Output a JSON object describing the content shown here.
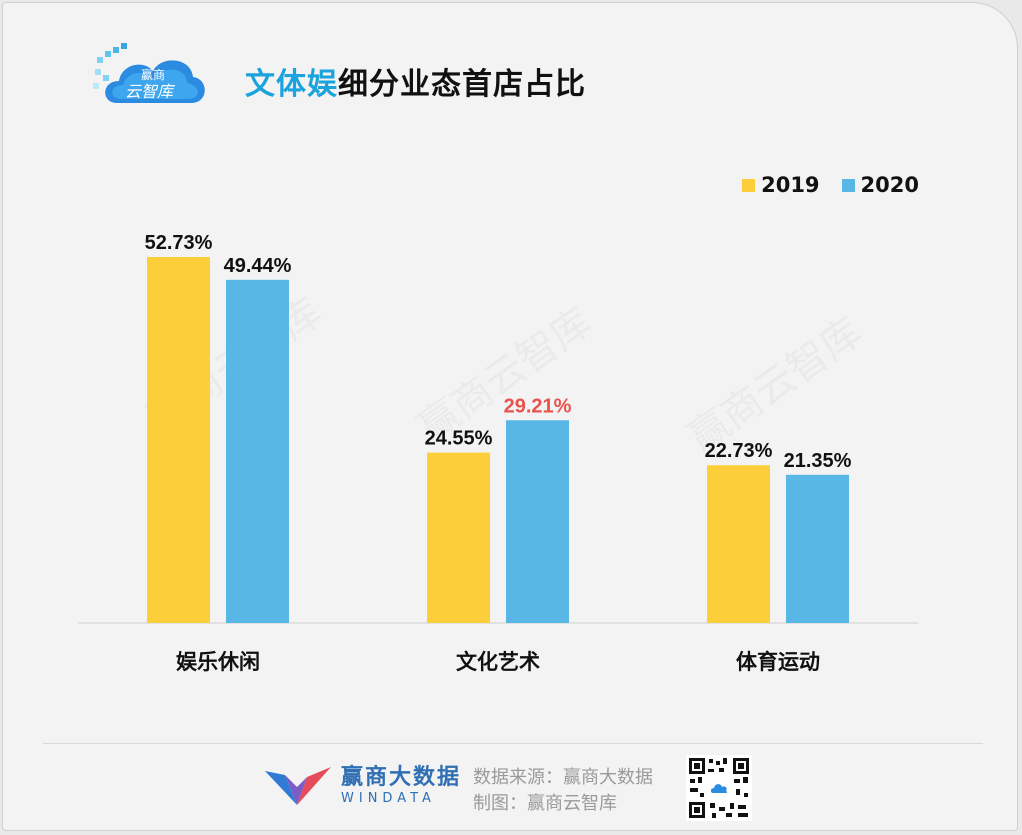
{
  "header": {
    "logo_text_top": "赢商",
    "logo_text_bottom": "云智库",
    "title_highlight": "文体娱",
    "title_rest": "细分业态首店占比"
  },
  "watermark_text": "赢商云智库",
  "colors": {
    "series_2019": "#fccf3a",
    "series_2020": "#58b7e4",
    "label": "#111111",
    "highlight_label": "#e8534d",
    "axis": "#cfcfcf"
  },
  "chart_data": {
    "type": "bar",
    "title": "文体娱细分业态首店占比",
    "categories": [
      "娱乐休闲",
      "文化艺术",
      "体育运动"
    ],
    "series": [
      {
        "name": "2019",
        "values": [
          52.73,
          24.55,
          22.73
        ],
        "labels": [
          "52.73%",
          "24.55%",
          "22.73%"
        ]
      },
      {
        "name": "2020",
        "values": [
          49.44,
          29.21,
          21.35
        ],
        "labels": [
          "49.44%",
          "29.21%",
          "21.35%"
        ]
      }
    ],
    "highlight": {
      "series": 1,
      "index": 1
    },
    "ylim": [
      0,
      60
    ],
    "legend_position": "top-right",
    "grid": false
  },
  "footer": {
    "brand_cn": "赢商大数据",
    "brand_en": "WINDATA",
    "source_line": "数据来源：赢商大数据",
    "made_by_line": "制图：赢商云智库"
  }
}
